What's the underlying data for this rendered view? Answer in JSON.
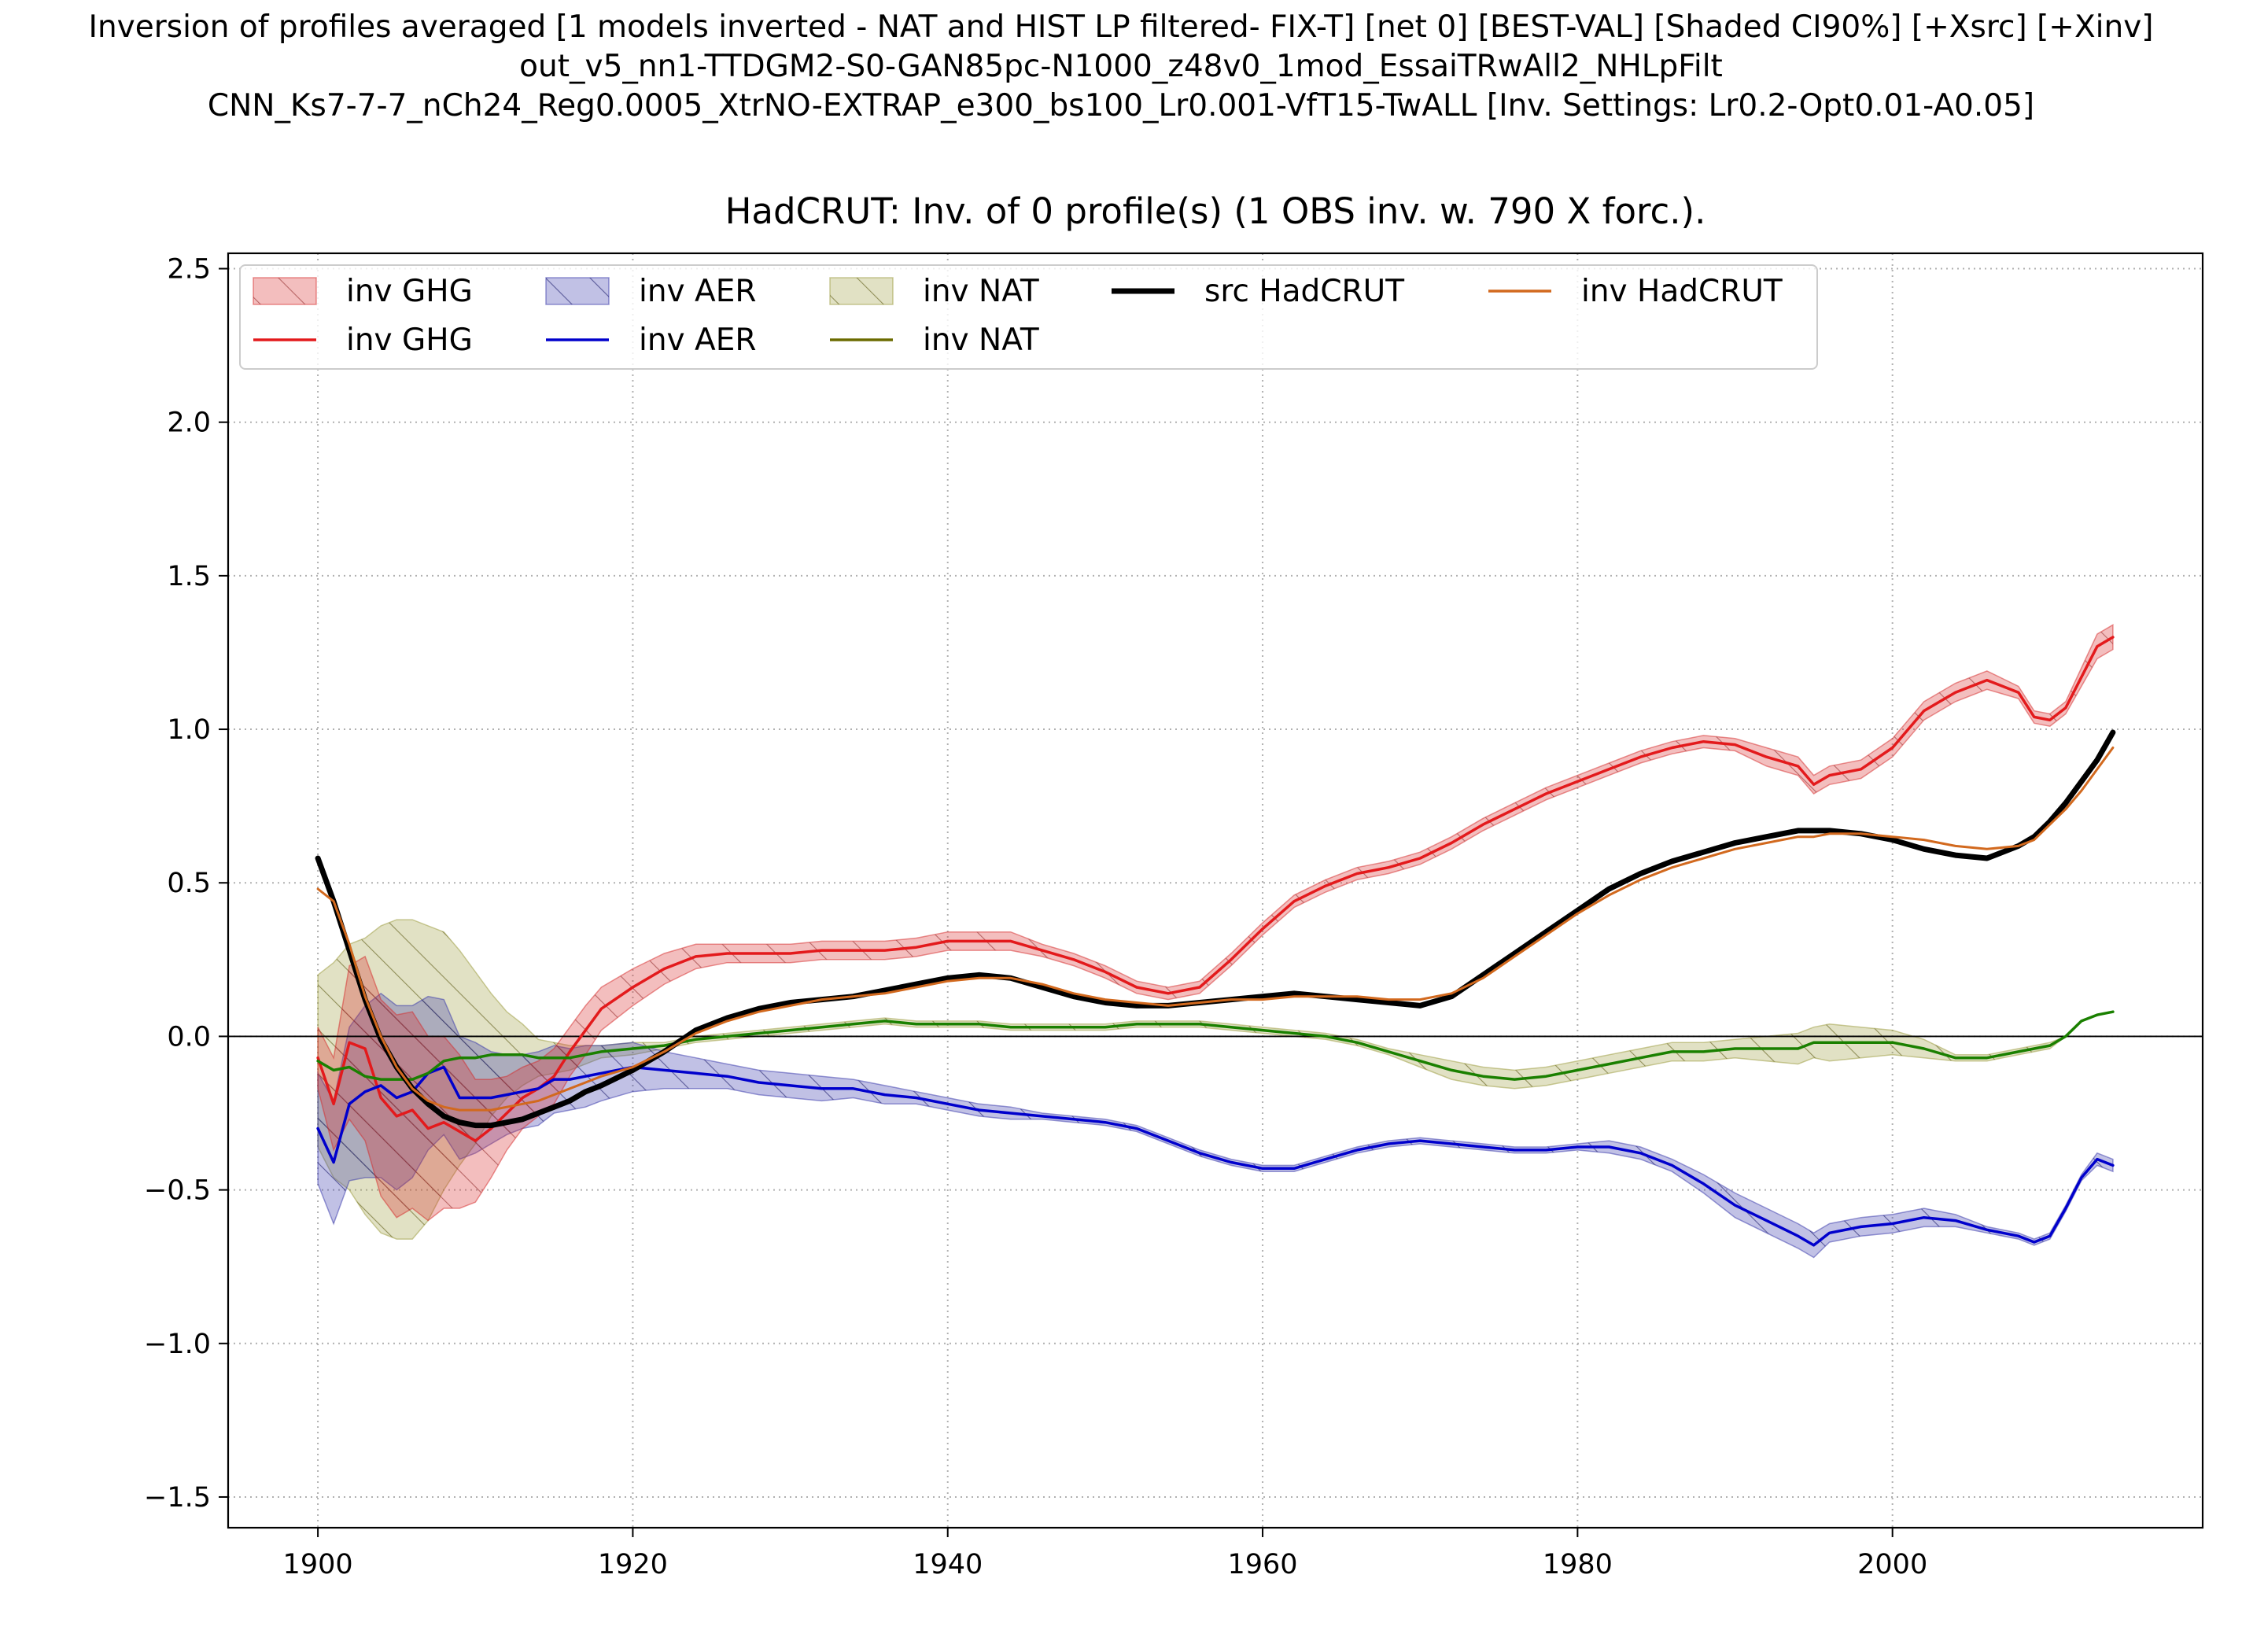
{
  "figure": {
    "suptitle_lines": [
      "Inversion of profiles averaged [1 models inverted - NAT and HIST LP filtered- FIX-T] [net 0] [BEST-VAL] [Shaded CI90%] [+Xsrc] [+Xinv]",
      "out_v5_nn1-TTDGM2-S0-GAN85pc-N1000_z48v0_1mod_EssaiTRwAll2_NHLpFilt",
      "CNN_Ks7-7-7_nCh24_Reg0.0005_XtrNO-EXTRAP_e300_bs100_Lr0.001-VfT15-TwALL [Inv. Settings: Lr0.2-Opt0.01-A0.05]"
    ],
    "axes_title": "HadCRUT: Inv. of 0 profile(s) (1 OBS inv. w. 790 X forc.)."
  },
  "chart_data": {
    "type": "line",
    "title": "HadCRUT: Inv. of 0 profile(s) (1 OBS inv. w. 790 X forc.).",
    "xlabel": "",
    "ylabel": "",
    "xlim": [
      1894.3,
      2019.7
    ],
    "ylim": [
      -1.6,
      2.55
    ],
    "xticks": [
      1900,
      1920,
      1940,
      1960,
      1980,
      2000
    ],
    "xtick_labels": [
      "1900",
      "1920",
      "1940",
      "1960",
      "1980",
      "2000"
    ],
    "yticks": [
      -1.5,
      -1.0,
      -0.5,
      0.0,
      0.5,
      1.0,
      1.5,
      2.0,
      2.5
    ],
    "ytick_labels": [
      "−1.5",
      "−1.0",
      "−0.5",
      "0.0",
      "0.5",
      "1.0",
      "1.5",
      "2.0",
      "2.5"
    ],
    "grid": true,
    "grid_style": "dotted",
    "zero_line": true,
    "legend_position": "upper-left",
    "legend_columns": 5,
    "legend": [
      {
        "label": "inv GHG",
        "kind": "band",
        "color": "#d62728",
        "series": "ghg"
      },
      {
        "label": "inv GHG",
        "kind": "line",
        "color": "#e31a1c",
        "series": "ghg"
      },
      {
        "label": "inv AER",
        "kind": "band",
        "color": "#3333aa",
        "series": "aer"
      },
      {
        "label": "inv AER",
        "kind": "line",
        "color": "#0000cc",
        "series": "aer"
      },
      {
        "label": "inv NAT",
        "kind": "band",
        "color": "#9a9a3a",
        "series": "nat"
      },
      {
        "label": "inv NAT",
        "kind": "line",
        "color": "#6b6b00",
        "series": "nat"
      },
      {
        "label": "src HadCRUT",
        "kind": "line",
        "color": "#000000",
        "series": "src"
      },
      {
        "label": "inv HadCRUT",
        "kind": "line",
        "color": "#d2691e",
        "series": "inv"
      }
    ],
    "series": [
      {
        "id": "ghg",
        "name": "inv GHG",
        "color": "#e31a1c",
        "band_color": "#d62728",
        "x": [
          1900,
          1901,
          1902,
          1903,
          1904,
          1905,
          1906,
          1907,
          1908,
          1909,
          1910,
          1911,
          1912,
          1913,
          1914,
          1915,
          1916,
          1917,
          1918,
          1920,
          1922,
          1924,
          1926,
          1928,
          1930,
          1932,
          1934,
          1936,
          1938,
          1940,
          1942,
          1944,
          1946,
          1948,
          1950,
          1952,
          1954,
          1956,
          1958,
          1960,
          1962,
          1964,
          1966,
          1968,
          1970,
          1972,
          1974,
          1976,
          1978,
          1980,
          1982,
          1984,
          1986,
          1988,
          1990,
          1992,
          1994,
          1995,
          1996,
          1998,
          2000,
          2002,
          2004,
          2006,
          2008,
          2009,
          2010,
          2011,
          2012,
          2013,
          2014
        ],
        "values": [
          -0.07,
          -0.22,
          -0.02,
          -0.04,
          -0.2,
          -0.26,
          -0.24,
          -0.3,
          -0.28,
          -0.31,
          -0.34,
          -0.3,
          -0.25,
          -0.2,
          -0.17,
          -0.13,
          -0.05,
          0.02,
          0.09,
          0.16,
          0.22,
          0.26,
          0.27,
          0.27,
          0.27,
          0.28,
          0.28,
          0.28,
          0.29,
          0.31,
          0.31,
          0.31,
          0.28,
          0.25,
          0.21,
          0.16,
          0.14,
          0.16,
          0.25,
          0.35,
          0.44,
          0.49,
          0.53,
          0.55,
          0.58,
          0.63,
          0.69,
          0.74,
          0.79,
          0.83,
          0.87,
          0.91,
          0.94,
          0.96,
          0.95,
          0.91,
          0.88,
          0.82,
          0.85,
          0.87,
          0.94,
          1.06,
          1.12,
          1.16,
          1.12,
          1.04,
          1.03,
          1.07,
          1.17,
          1.27,
          1.3
        ],
        "ci_halfwidth": [
          0.1,
          0.15,
          0.25,
          0.3,
          0.32,
          0.33,
          0.32,
          0.3,
          0.28,
          0.25,
          0.2,
          0.16,
          0.12,
          0.1,
          0.09,
          0.09,
          0.08,
          0.08,
          0.07,
          0.06,
          0.05,
          0.04,
          0.03,
          0.03,
          0.03,
          0.03,
          0.03,
          0.03,
          0.03,
          0.03,
          0.03,
          0.03,
          0.02,
          0.02,
          0.02,
          0.02,
          0.02,
          0.02,
          0.02,
          0.02,
          0.02,
          0.02,
          0.02,
          0.02,
          0.02,
          0.02,
          0.02,
          0.02,
          0.02,
          0.02,
          0.02,
          0.02,
          0.02,
          0.02,
          0.02,
          0.03,
          0.03,
          0.03,
          0.03,
          0.03,
          0.03,
          0.03,
          0.03,
          0.03,
          0.02,
          0.02,
          0.02,
          0.02,
          0.03,
          0.04,
          0.04
        ]
      },
      {
        "id": "aer",
        "name": "inv AER",
        "color": "#0000cc",
        "band_color": "#3333aa",
        "x": [
          1900,
          1901,
          1902,
          1903,
          1904,
          1905,
          1906,
          1907,
          1908,
          1909,
          1910,
          1911,
          1912,
          1913,
          1914,
          1915,
          1916,
          1917,
          1918,
          1920,
          1922,
          1924,
          1926,
          1928,
          1930,
          1932,
          1934,
          1936,
          1938,
          1940,
          1942,
          1944,
          1946,
          1948,
          1950,
          1952,
          1954,
          1956,
          1958,
          1960,
          1962,
          1964,
          1966,
          1968,
          1970,
          1972,
          1974,
          1976,
          1978,
          1980,
          1982,
          1984,
          1986,
          1988,
          1990,
          1992,
          1994,
          1995,
          1996,
          1998,
          2000,
          2002,
          2004,
          2006,
          2008,
          2009,
          2010,
          2011,
          2012,
          2013,
          2014
        ],
        "values": [
          -0.3,
          -0.41,
          -0.22,
          -0.18,
          -0.16,
          -0.2,
          -0.18,
          -0.12,
          -0.1,
          -0.2,
          -0.2,
          -0.2,
          -0.19,
          -0.18,
          -0.17,
          -0.14,
          -0.14,
          -0.13,
          -0.12,
          -0.1,
          -0.11,
          -0.12,
          -0.13,
          -0.15,
          -0.16,
          -0.17,
          -0.17,
          -0.19,
          -0.2,
          -0.22,
          -0.24,
          -0.25,
          -0.26,
          -0.27,
          -0.28,
          -0.3,
          -0.34,
          -0.38,
          -0.41,
          -0.43,
          -0.43,
          -0.4,
          -0.37,
          -0.35,
          -0.34,
          -0.35,
          -0.36,
          -0.37,
          -0.37,
          -0.36,
          -0.36,
          -0.38,
          -0.42,
          -0.48,
          -0.55,
          -0.6,
          -0.65,
          -0.68,
          -0.64,
          -0.62,
          -0.61,
          -0.59,
          -0.6,
          -0.63,
          -0.65,
          -0.67,
          -0.65,
          -0.56,
          -0.46,
          -0.4,
          -0.42
        ],
        "ci_halfwidth": [
          0.18,
          0.2,
          0.25,
          0.28,
          0.3,
          0.3,
          0.28,
          0.25,
          0.22,
          0.2,
          0.18,
          0.15,
          0.13,
          0.12,
          0.12,
          0.11,
          0.1,
          0.1,
          0.09,
          0.08,
          0.06,
          0.05,
          0.04,
          0.04,
          0.04,
          0.04,
          0.03,
          0.03,
          0.02,
          0.02,
          0.02,
          0.02,
          0.01,
          0.01,
          0.01,
          0.01,
          0.01,
          0.01,
          0.01,
          0.01,
          0.01,
          0.01,
          0.01,
          0.01,
          0.01,
          0.01,
          0.01,
          0.01,
          0.01,
          0.01,
          0.02,
          0.02,
          0.02,
          0.03,
          0.04,
          0.04,
          0.04,
          0.04,
          0.03,
          0.03,
          0.03,
          0.03,
          0.02,
          0.01,
          0.01,
          0.01,
          0.01,
          0.01,
          0.01,
          0.02,
          0.02
        ]
      },
      {
        "id": "nat",
        "name": "inv NAT",
        "color": "#1a8000",
        "band_color": "#9a9a3a",
        "x": [
          1900,
          1901,
          1902,
          1903,
          1904,
          1905,
          1906,
          1907,
          1908,
          1909,
          1910,
          1911,
          1912,
          1913,
          1914,
          1915,
          1916,
          1917,
          1918,
          1920,
          1922,
          1924,
          1926,
          1928,
          1930,
          1932,
          1934,
          1936,
          1938,
          1940,
          1942,
          1944,
          1946,
          1948,
          1950,
          1952,
          1954,
          1956,
          1958,
          1960,
          1962,
          1964,
          1966,
          1968,
          1970,
          1972,
          1974,
          1976,
          1978,
          1980,
          1982,
          1984,
          1986,
          1988,
          1990,
          1992,
          1994,
          1995,
          1996,
          1998,
          2000,
          2002,
          2004,
          2006,
          2008,
          2009,
          2010,
          2011,
          2012,
          2013,
          2014
        ],
        "values": [
          -0.08,
          -0.11,
          -0.1,
          -0.13,
          -0.14,
          -0.14,
          -0.14,
          -0.12,
          -0.08,
          -0.07,
          -0.07,
          -0.06,
          -0.06,
          -0.06,
          -0.07,
          -0.07,
          -0.07,
          -0.06,
          -0.05,
          -0.04,
          -0.03,
          -0.01,
          0.0,
          0.01,
          0.02,
          0.03,
          0.04,
          0.05,
          0.04,
          0.04,
          0.04,
          0.03,
          0.03,
          0.03,
          0.03,
          0.04,
          0.04,
          0.04,
          0.03,
          0.02,
          0.01,
          0.0,
          -0.02,
          -0.05,
          -0.08,
          -0.11,
          -0.13,
          -0.14,
          -0.13,
          -0.11,
          -0.09,
          -0.07,
          -0.05,
          -0.05,
          -0.04,
          -0.04,
          -0.04,
          -0.02,
          -0.02,
          -0.02,
          -0.02,
          -0.04,
          -0.07,
          -0.07,
          -0.05,
          -0.04,
          -0.03,
          0.0,
          0.05,
          0.07,
          0.08
        ],
        "ci_halfwidth": [
          0.28,
          0.35,
          0.4,
          0.45,
          0.5,
          0.52,
          0.52,
          0.48,
          0.42,
          0.35,
          0.28,
          0.2,
          0.14,
          0.1,
          0.06,
          0.05,
          0.04,
          0.03,
          0.02,
          0.02,
          0.01,
          0.01,
          0.01,
          0.01,
          0.01,
          0.01,
          0.01,
          0.01,
          0.01,
          0.01,
          0.01,
          0.01,
          0.01,
          0.01,
          0.01,
          0.01,
          0.01,
          0.01,
          0.01,
          0.01,
          0.01,
          0.01,
          0.01,
          0.01,
          0.02,
          0.03,
          0.03,
          0.03,
          0.03,
          0.03,
          0.03,
          0.03,
          0.03,
          0.03,
          0.03,
          0.04,
          0.05,
          0.05,
          0.06,
          0.05,
          0.04,
          0.03,
          0.01,
          0.01,
          0.01,
          0.01,
          0.01,
          0.0,
          0.0,
          0.0,
          0.0
        ]
      },
      {
        "id": "src",
        "name": "src HadCRUT",
        "color": "#000000",
        "x": [
          1900,
          1901,
          1902,
          1903,
          1904,
          1905,
          1906,
          1907,
          1908,
          1909,
          1910,
          1911,
          1912,
          1913,
          1914,
          1915,
          1916,
          1917,
          1918,
          1920,
          1922,
          1924,
          1926,
          1928,
          1930,
          1932,
          1934,
          1936,
          1938,
          1940,
          1942,
          1944,
          1946,
          1948,
          1950,
          1952,
          1954,
          1956,
          1958,
          1960,
          1962,
          1964,
          1966,
          1968,
          1970,
          1972,
          1974,
          1976,
          1978,
          1980,
          1982,
          1984,
          1986,
          1988,
          1990,
          1992,
          1994,
          1995,
          1996,
          1998,
          2000,
          2002,
          2004,
          2006,
          2008,
          2009,
          2010,
          2011,
          2012,
          2013,
          2014
        ],
        "values": [
          0.58,
          0.44,
          0.28,
          0.12,
          -0.01,
          -0.1,
          -0.17,
          -0.22,
          -0.26,
          -0.28,
          -0.29,
          -0.29,
          -0.28,
          -0.27,
          -0.25,
          -0.23,
          -0.21,
          -0.18,
          -0.16,
          -0.11,
          -0.05,
          0.02,
          0.06,
          0.09,
          0.11,
          0.12,
          0.13,
          0.15,
          0.17,
          0.19,
          0.2,
          0.19,
          0.16,
          0.13,
          0.11,
          0.1,
          0.1,
          0.11,
          0.12,
          0.13,
          0.14,
          0.13,
          0.12,
          0.11,
          0.1,
          0.13,
          0.2,
          0.27,
          0.34,
          0.41,
          0.48,
          0.53,
          0.57,
          0.6,
          0.63,
          0.65,
          0.67,
          0.67,
          0.67,
          0.66,
          0.64,
          0.61,
          0.59,
          0.58,
          0.62,
          0.65,
          0.7,
          0.76,
          0.83,
          0.9,
          0.99
        ]
      },
      {
        "id": "inv",
        "name": "inv HadCRUT",
        "color": "#d2691e",
        "x": [
          1900,
          1901,
          1902,
          1903,
          1904,
          1905,
          1906,
          1907,
          1908,
          1909,
          1910,
          1911,
          1912,
          1913,
          1914,
          1915,
          1916,
          1917,
          1918,
          1920,
          1922,
          1924,
          1926,
          1928,
          1930,
          1932,
          1934,
          1936,
          1938,
          1940,
          1942,
          1944,
          1946,
          1948,
          1950,
          1952,
          1954,
          1956,
          1958,
          1960,
          1962,
          1964,
          1966,
          1968,
          1970,
          1972,
          1974,
          1976,
          1978,
          1980,
          1982,
          1984,
          1986,
          1988,
          1990,
          1992,
          1994,
          1995,
          1996,
          1998,
          2000,
          2002,
          2004,
          2006,
          2008,
          2009,
          2010,
          2011,
          2012,
          2013,
          2014
        ],
        "values": [
          0.48,
          0.44,
          0.3,
          0.13,
          0.0,
          -0.1,
          -0.17,
          -0.21,
          -0.23,
          -0.24,
          -0.24,
          -0.24,
          -0.23,
          -0.22,
          -0.21,
          -0.19,
          -0.17,
          -0.15,
          -0.13,
          -0.1,
          -0.05,
          0.01,
          0.05,
          0.08,
          0.1,
          0.12,
          0.13,
          0.14,
          0.16,
          0.18,
          0.19,
          0.19,
          0.17,
          0.14,
          0.12,
          0.11,
          0.1,
          0.11,
          0.12,
          0.12,
          0.13,
          0.13,
          0.13,
          0.12,
          0.12,
          0.14,
          0.19,
          0.26,
          0.33,
          0.4,
          0.46,
          0.51,
          0.55,
          0.58,
          0.61,
          0.63,
          0.65,
          0.65,
          0.66,
          0.66,
          0.65,
          0.64,
          0.62,
          0.61,
          0.62,
          0.64,
          0.69,
          0.74,
          0.8,
          0.87,
          0.94
        ]
      }
    ]
  }
}
